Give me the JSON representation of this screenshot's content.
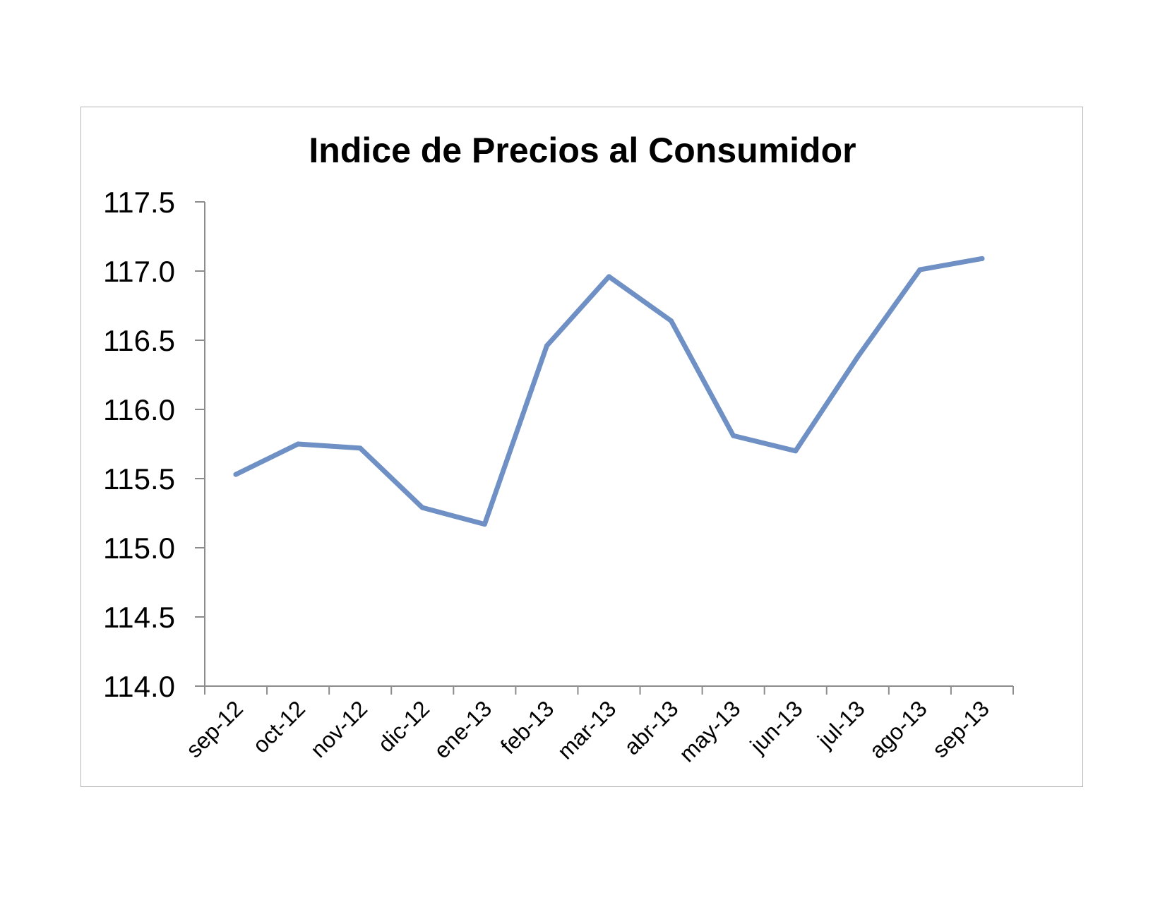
{
  "chart_data": {
    "type": "line",
    "title": "Indice de Precios al Consumidor",
    "xlabel": "",
    "ylabel": "",
    "categories": [
      "sep-12",
      "oct-12",
      "nov-12",
      "dic-12",
      "ene-13",
      "feb-13",
      "mar-13",
      "abr-13",
      "may-13",
      "jun-13",
      "jul-13",
      "ago-13",
      "sep-13"
    ],
    "series": [
      {
        "values": [
          115.53,
          115.75,
          115.72,
          115.29,
          115.17,
          116.46,
          116.96,
          116.64,
          115.81,
          115.7,
          116.38,
          117.01,
          117.09
        ]
      }
    ],
    "ylim": [
      114.0,
      117.5
    ],
    "yticks": [
      "114.0",
      "114.5",
      "115.0",
      "115.5",
      "116.0",
      "116.5",
      "117.0",
      "117.5"
    ],
    "grid": false,
    "legend": "none",
    "line_color": "#6f90c4"
  }
}
